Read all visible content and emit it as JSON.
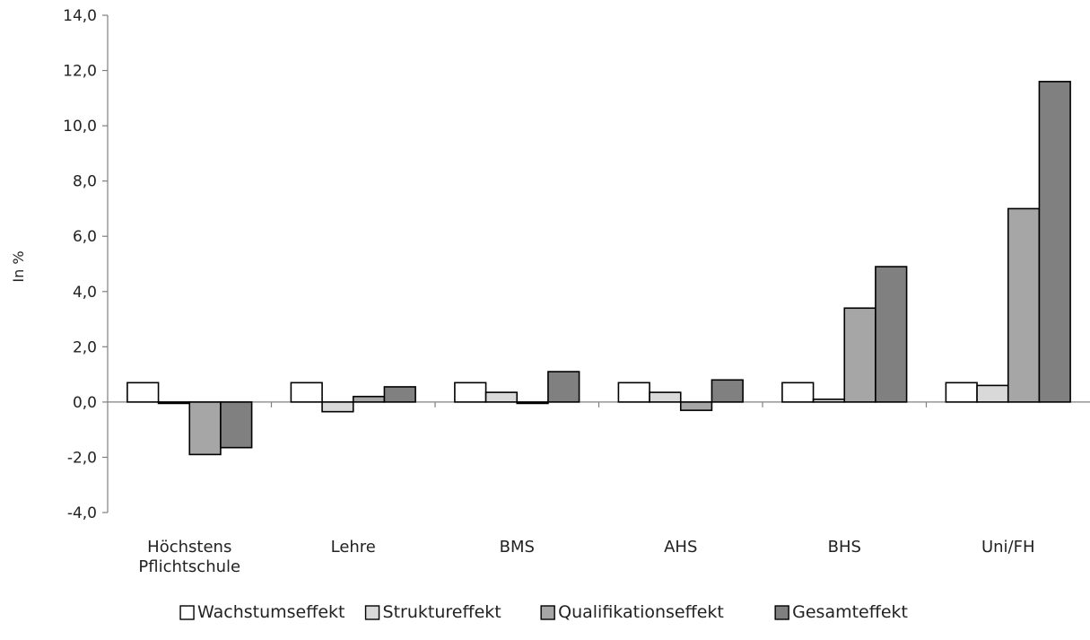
{
  "chart_data": {
    "type": "bar",
    "ylabel": "In %",
    "ylim": [
      -4,
      14
    ],
    "yticks": [
      -4,
      -2,
      0,
      2,
      4,
      6,
      8,
      10,
      12,
      14
    ],
    "ytick_labels": [
      "-4,0",
      "-2,0",
      "0,0",
      "2,0",
      "4,0",
      "6,0",
      "8,0",
      "10,0",
      "12,0",
      "14,0"
    ],
    "categories": [
      [
        "Höchstens",
        "Pflichtschule"
      ],
      [
        "Lehre"
      ],
      [
        "BMS"
      ],
      [
        "AHS"
      ],
      [
        "BHS"
      ],
      [
        "Uni/FH"
      ]
    ],
    "grid": false,
    "legend_position": "bottom",
    "series": [
      {
        "name": "Wachstumseffekt",
        "color": "#ffffff",
        "values": [
          0.7,
          0.7,
          0.7,
          0.7,
          0.7,
          0.7
        ]
      },
      {
        "name": "Struktureffekt",
        "color": "#d9d9d9",
        "values": [
          -0.05,
          -0.35,
          0.35,
          0.35,
          0.1,
          0.6
        ]
      },
      {
        "name": "Qualifikationseffekt",
        "color": "#a6a6a6",
        "values": [
          -1.9,
          0.2,
          -0.05,
          -0.3,
          3.4,
          7.0
        ]
      },
      {
        "name": "Gesamteffekt",
        "color": "#808080",
        "values": [
          -1.65,
          0.55,
          1.1,
          0.8,
          4.9,
          11.6
        ]
      }
    ]
  }
}
